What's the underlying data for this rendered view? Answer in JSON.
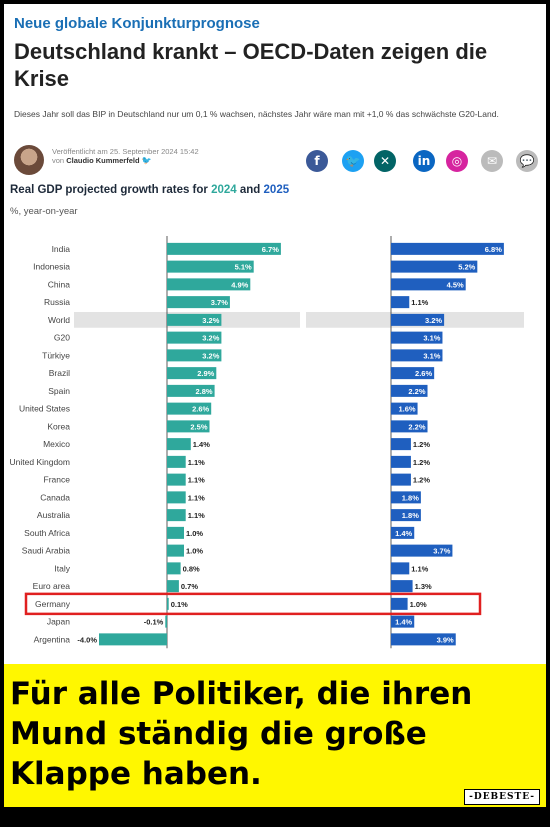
{
  "article": {
    "kicker": "Neue globale Konjunkturprognose",
    "headline": "Deutschland krankt – OECD-Daten zeigen die Krise",
    "teaser": "Dieses Jahr soll das BIP in Deutschland nur um 0,1 % wachsen, nächstes Jahr wäre man mit +1,0 % das schwächste G20-Land.",
    "published": "Veröffentlicht am 25. September 2024 15:42",
    "by_prefix": "von",
    "author_name": "Claudio Kummerfeld",
    "author_twitter_icon": "twitter-bird-icon"
  },
  "share": [
    {
      "icon": "facebook-icon",
      "glyph": "f",
      "color": "#3b5998"
    },
    {
      "icon": "twitter-icon",
      "glyph": "🐦",
      "color": "#1da1f2"
    },
    {
      "icon": "xing-icon",
      "glyph": "✕",
      "color": "#026466"
    },
    {
      "icon": "linkedin-icon",
      "glyph": "in",
      "color": "#0a66c2"
    },
    {
      "icon": "instagram-icon",
      "glyph": "◎",
      "color": "#d6249f"
    },
    {
      "icon": "email-icon",
      "glyph": "✉",
      "color": "#bbbbbb"
    },
    {
      "icon": "comment-icon",
      "glyph": "💬",
      "color": "#bbbbbb"
    }
  ],
  "chart_data": {
    "type": "bar",
    "title_prefix": "Real GDP projected growth rates for ",
    "title_year1": "2024",
    "title_and": " and ",
    "title_year2": "2025",
    "subtitle": "%, year-on-year",
    "categories": [
      "India",
      "Indonesia",
      "China",
      "Russia",
      "World",
      "G20",
      "Türkiye",
      "Brazil",
      "Spain",
      "United States",
      "Korea",
      "Mexico",
      "United Kingdom",
      "France",
      "Canada",
      "Australia",
      "South Africa",
      "Saudi Arabia",
      "Italy",
      "Euro area",
      "Germany",
      "Japan",
      "Argentina"
    ],
    "series": [
      {
        "name": "2024",
        "color": "#2fa89c",
        "values": [
          6.7,
          5.1,
          4.9,
          3.7,
          3.2,
          3.2,
          3.2,
          2.9,
          2.8,
          2.6,
          2.5,
          1.4,
          1.1,
          1.1,
          1.1,
          1.1,
          1.0,
          1.0,
          0.8,
          0.7,
          0.1,
          -0.1,
          -4.0
        ]
      },
      {
        "name": "2025",
        "color": "#1f5fbf",
        "values": [
          6.8,
          5.2,
          4.5,
          1.1,
          3.2,
          3.1,
          3.1,
          2.6,
          2.2,
          1.6,
          2.2,
          1.2,
          1.2,
          1.2,
          1.8,
          1.8,
          1.4,
          3.7,
          1.1,
          1.3,
          1.0,
          1.4,
          3.9
        ]
      }
    ],
    "value_labels_2024": [
      "6.7%",
      "5.1%",
      "4.9%",
      "3.7%",
      "3.2%",
      "3.2%",
      "3.2%",
      "2.9%",
      "2.8%",
      "2.6%",
      "2.5%",
      "1.4%",
      "1.1%",
      "1.1%",
      "1.1%",
      "1.1%",
      "1.0%",
      "1.0%",
      "0.8%",
      "0.7%",
      "0.1%",
      "-0.1%",
      "-4.0%"
    ],
    "value_labels_2025": [
      "6.8%",
      "5.2%",
      "4.5%",
      "1.1%",
      "3.2%",
      "3.1%",
      "3.1%",
      "2.6%",
      "2.2%",
      "1.6%",
      "2.2%",
      "1.2%",
      "1.2%",
      "1.2%",
      "1.8%",
      "1.8%",
      "1.4%",
      "3.7%",
      "1.1%",
      "1.3%",
      "1.0%",
      "1.4%",
      "3.9%"
    ],
    "highlight_category": "World",
    "highlight_color": "#e3e3e3",
    "boxed_category": "Germany",
    "box_color": "#e02020"
  },
  "banner": {
    "text": "Für alle Politiker, die ihren Mund ständig die große Klappe haben."
  },
  "watermark": "DEBESTE"
}
